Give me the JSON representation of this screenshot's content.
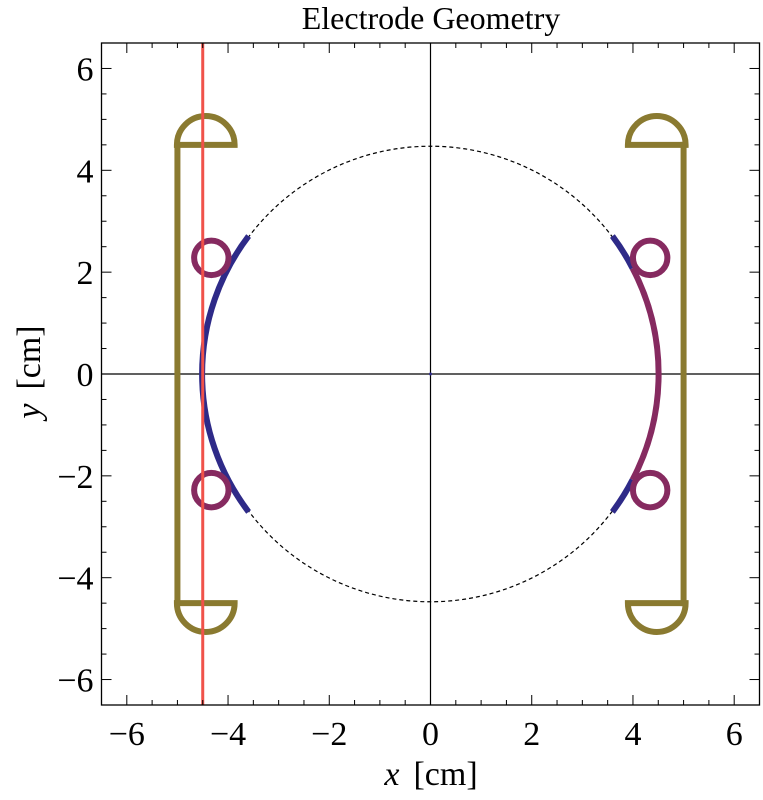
{
  "chart_data": {
    "type": "line",
    "title": "Electrode Geometry",
    "xlabel_var": "x",
    "xlabel_unit": "[cm]",
    "ylabel_var": "y",
    "ylabel_unit": "[cm]",
    "xlim": [
      -6.5,
      6.5
    ],
    "ylim": [
      -6.5,
      6.5
    ],
    "major_ticks": [
      -6,
      -4,
      -2,
      0,
      2,
      4,
      6
    ],
    "tick_labels": [
      "−6",
      "−4",
      "−2",
      "0",
      "2",
      "4",
      "6"
    ],
    "minor_tick_step": 0.5,
    "grid": false,
    "colors": {
      "olive": "#8a7a30",
      "purple": "#862a60",
      "blue": "#2e2a88",
      "red": "#f0524a",
      "axes": "#000000"
    },
    "reference_circle": {
      "cx": 0,
      "cy": 0,
      "r": 4.5,
      "style": "dashed"
    },
    "vertical_line": {
      "x": -4.5,
      "color": "red"
    },
    "bars": [
      {
        "x": -5.0,
        "y_from": -4.5,
        "y_to": 4.5,
        "color": "olive"
      },
      {
        "x": 5.0,
        "y_from": -4.5,
        "y_to": 4.5,
        "color": "olive"
      }
    ],
    "semicircles": [
      {
        "cx": -4.44,
        "cy": 4.5,
        "r": 0.57,
        "side": "up",
        "color": "olive"
      },
      {
        "cx": -4.44,
        "cy": -4.5,
        "r": 0.57,
        "side": "down",
        "color": "olive"
      },
      {
        "cx": 4.47,
        "cy": 4.5,
        "r": 0.57,
        "side": "up",
        "color": "olive"
      },
      {
        "cx": 4.47,
        "cy": -4.5,
        "r": 0.57,
        "side": "down",
        "color": "olive"
      }
    ],
    "rings": [
      {
        "cx": -4.33,
        "cy": 2.28,
        "r": 0.34,
        "color": "purple"
      },
      {
        "cx": -4.33,
        "cy": -2.28,
        "r": 0.34,
        "color": "purple"
      },
      {
        "cx": 4.34,
        "cy": 2.28,
        "r": 0.34,
        "color": "purple"
      },
      {
        "cx": 4.34,
        "cy": -2.28,
        "r": 0.34,
        "color": "purple"
      }
    ],
    "arcs": [
      {
        "r": 4.5,
        "from_deg": 143,
        "to_deg": 217,
        "color": "blue"
      },
      {
        "r": 4.5,
        "from_deg": 27.5,
        "to_deg": 37,
        "color": "blue"
      },
      {
        "r": 4.5,
        "from_deg": -37,
        "to_deg": -27.5,
        "color": "blue"
      },
      {
        "r": 4.5,
        "from_deg": -27.5,
        "to_deg": 27.5,
        "color": "purple"
      }
    ]
  }
}
